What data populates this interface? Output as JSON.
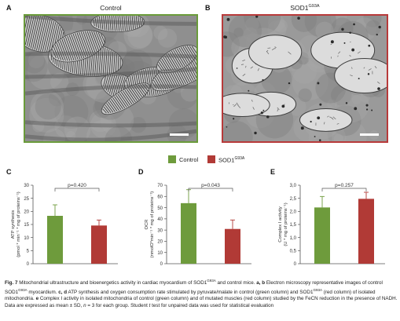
{
  "panels": {
    "a": {
      "letter": "A",
      "title": "Control",
      "border_color": "#6a9b3a"
    },
    "b": {
      "letter": "B",
      "title_base": "SOD1",
      "title_sup": "G93A",
      "border_color": "#b83a3a"
    }
  },
  "legend": {
    "items": [
      {
        "label": "Control",
        "color": "#6e9b3c"
      },
      {
        "label_base": "SOD1",
        "label_sup": "G93A",
        "color": "#b13a36"
      }
    ]
  },
  "chart_data": [
    {
      "type": "bar",
      "panel": "C",
      "categories": [
        "Control",
        "SOD1G93A"
      ],
      "values": [
        18.3,
        14.6
      ],
      "errors": [
        4.2,
        2.1
      ],
      "colors": [
        "#6e9b3c",
        "#b13a36"
      ],
      "ylabel_lines": [
        "ATP synthesis",
        "(pmol * min⁻¹ * mg of proteins⁻¹)"
      ],
      "ylim": [
        0,
        30
      ],
      "yticks": [
        "0",
        "5",
        "10",
        "15",
        "20",
        "25",
        "30"
      ],
      "annotation": "p=0.420"
    },
    {
      "type": "bar",
      "panel": "D",
      "categories": [
        "Control",
        "SOD1G93A"
      ],
      "values": [
        54,
        31
      ],
      "errors": [
        12,
        8
      ],
      "colors": [
        "#6e9b3c",
        "#b13a36"
      ],
      "ylabel_lines": [
        "OCR",
        "(nmolO*min⁻¹ * mg of proteins⁻¹)"
      ],
      "ylim": [
        0,
        70
      ],
      "yticks": [
        "0",
        "10",
        "20",
        "30",
        "40",
        "50",
        "60",
        "70"
      ],
      "annotation": "p=0.043"
    },
    {
      "type": "bar",
      "panel": "E",
      "categories": [
        "Control",
        "SOD1G93A"
      ],
      "values": [
        2.15,
        2.48
      ],
      "errors": [
        0.42,
        0.25
      ],
      "colors": [
        "#6e9b3c",
        "#b13a36"
      ],
      "ylabel_lines": [
        "Complex I activity",
        "(U * mg of proteins⁻¹)"
      ],
      "ylim": [
        0,
        3
      ],
      "yticks": [
        "0",
        "0,5",
        "1,0",
        "1,5",
        "2,0",
        "2,5",
        "3,0"
      ],
      "annotation": "p=0.257"
    }
  ],
  "caption": {
    "fig_label": "Fig. 7",
    "parts": [
      " Mitochondrial ultrastructure and bioenergetics activity in cardiac myocardium of SOD1",
      "G93A",
      " and control mice. ",
      "a, b",
      " Electron microscopy representative images of control SOD1",
      "G93A",
      " myocardium. ",
      "c, d",
      " ATP synthesis and oxygen consumption rate stimulated by pyruvate/malate in control (green column) and SOD1",
      "G93A",
      " (red column) of isolated mitochondria. ",
      "e",
      " Complex I activity in isolated mitochondria of control (green column) and of mutated muscles (red column) studied by the FeCN reduction in the presence of NADH. Data are expressed as mean ± SD, ",
      "n",
      " = 3 for each group. Student ",
      "t",
      " test for unpaired data was used for statistical evaluation"
    ]
  }
}
